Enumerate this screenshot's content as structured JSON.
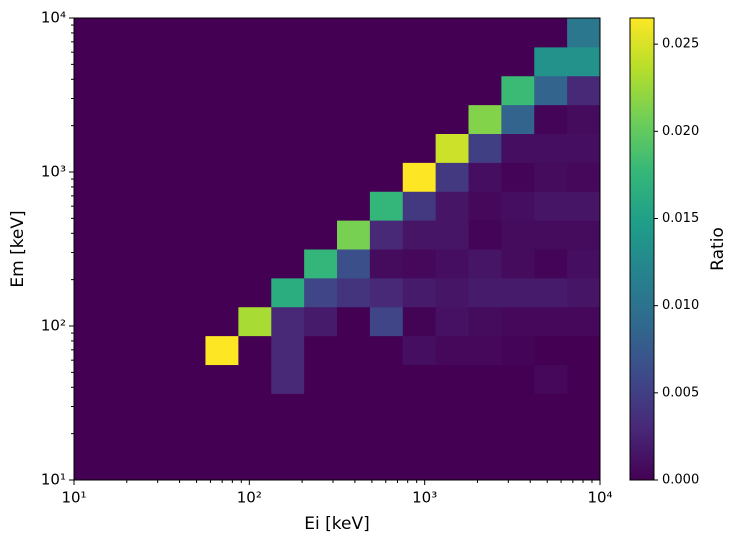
{
  "chart_data": {
    "type": "heatmap2d",
    "xlabel": "Ei [keV]",
    "ylabel": "Em [keV]",
    "colorbar_label": "Ratio",
    "xscale": "log",
    "yscale": "log",
    "colormap": "viridis",
    "xlim": [
      10,
      10000
    ],
    "ylim": [
      10,
      10000
    ],
    "zlim": [
      0,
      0.0265
    ],
    "xticks": [
      {
        "value": 10,
        "label": "10¹"
      },
      {
        "value": 100,
        "label": "10²"
      },
      {
        "value": 1000,
        "label": "10³"
      },
      {
        "value": 10000,
        "label": "10⁴"
      }
    ],
    "yticks": [
      {
        "value": 10,
        "label": "10¹"
      },
      {
        "value": 100,
        "label": "10²"
      },
      {
        "value": 1000,
        "label": "10³"
      },
      {
        "value": 10000,
        "label": "10⁴"
      }
    ],
    "minor_ticks": [
      20,
      30,
      40,
      50,
      60,
      70,
      80,
      90,
      200,
      300,
      400,
      500,
      600,
      700,
      800,
      900,
      2000,
      3000,
      4000,
      5000,
      6000,
      7000,
      8000,
      9000
    ],
    "zticks": [
      {
        "value": 0,
        "label": "0.000"
      },
      {
        "value": 0.005,
        "label": "0.005"
      },
      {
        "value": 0.01,
        "label": "0.010"
      },
      {
        "value": 0.015,
        "label": "0.015"
      },
      {
        "value": 0.02,
        "label": "0.020"
      },
      {
        "value": 0.025,
        "label": "0.025"
      }
    ],
    "xbins": [
      10,
      15.4,
      23.7,
      36.5,
      56.2,
      86.6,
      133.4,
      205.4,
      316.2,
      487,
      749.9,
      1154.8,
      1778.3,
      2738.4,
      4217,
      6493.8,
      10000
    ],
    "ybins": [
      10,
      15.4,
      23.7,
      36.5,
      56.2,
      86.6,
      133.4,
      205.4,
      316.2,
      487,
      749.9,
      1154.8,
      1778.3,
      2738.4,
      4217,
      6493.8,
      10000
    ],
    "z": [
      [
        0,
        0,
        0,
        0,
        0,
        0,
        0,
        0,
        0,
        0,
        0,
        0,
        0,
        0,
        0,
        0
      ],
      [
        0,
        0,
        0,
        0,
        0,
        0,
        0,
        0,
        0,
        0,
        0,
        0,
        0,
        0,
        0,
        0
      ],
      [
        0,
        0,
        0,
        0,
        0,
        0,
        0,
        0,
        0,
        0,
        0,
        0,
        0,
        0,
        0,
        0
      ],
      [
        0,
        0,
        0,
        0,
        0,
        0,
        0.003,
        0,
        0,
        0,
        0,
        0,
        0,
        0,
        0.0005,
        0
      ],
      [
        0,
        0,
        0,
        0,
        0.0265,
        0,
        0.003,
        0,
        0,
        0,
        0.001,
        0.0005,
        0.0005,
        0.0003,
        0,
        0
      ],
      [
        0,
        0,
        0,
        0,
        0,
        0.023,
        0.003,
        0.002,
        0,
        0.0055,
        0.0002,
        0.0012,
        0.0008,
        0.0005,
        0.0005,
        0.0005
      ],
      [
        0,
        0,
        0,
        0,
        0,
        0,
        0.0165,
        0.0055,
        0.004,
        0.003,
        0.002,
        0.0015,
        0.002,
        0.002,
        0.002,
        0.0015
      ],
      [
        0,
        0,
        0,
        0,
        0,
        0,
        0,
        0.0175,
        0.0065,
        0.0008,
        0.0005,
        0.001,
        0.0015,
        0.0008,
        0.0003,
        0.001
      ],
      [
        0,
        0,
        0,
        0,
        0,
        0,
        0,
        0,
        0.021,
        0.003,
        0.0015,
        0.0015,
        0.0003,
        0.0008,
        0.0008,
        0.0008
      ],
      [
        0,
        0,
        0,
        0,
        0,
        0,
        0,
        0,
        0,
        0.0175,
        0.0045,
        0.0015,
        0.0005,
        0.001,
        0.0015,
        0.0015
      ],
      [
        0,
        0,
        0,
        0,
        0,
        0,
        0,
        0,
        0,
        0,
        0.0265,
        0.0045,
        0.001,
        0.0003,
        0.0008,
        0.0005
      ],
      [
        0,
        0,
        0,
        0,
        0,
        0,
        0,
        0,
        0,
        0,
        0,
        0.0245,
        0.005,
        0.001,
        0.001,
        0.001
      ],
      [
        0,
        0,
        0,
        0,
        0,
        0,
        0,
        0,
        0,
        0,
        0,
        0,
        0.0215,
        0.0085,
        0.0003,
        0.0008
      ],
      [
        0,
        0,
        0,
        0,
        0,
        0,
        0,
        0,
        0,
        0,
        0,
        0,
        0,
        0.018,
        0.0085,
        0.003
      ],
      [
        0,
        0,
        0,
        0,
        0,
        0,
        0,
        0,
        0,
        0,
        0,
        0,
        0,
        0,
        0.0135,
        0.0135
      ],
      [
        0,
        0,
        0,
        0,
        0,
        0,
        0,
        0,
        0,
        0,
        0,
        0,
        0,
        0,
        0,
        0.0105
      ]
    ]
  }
}
